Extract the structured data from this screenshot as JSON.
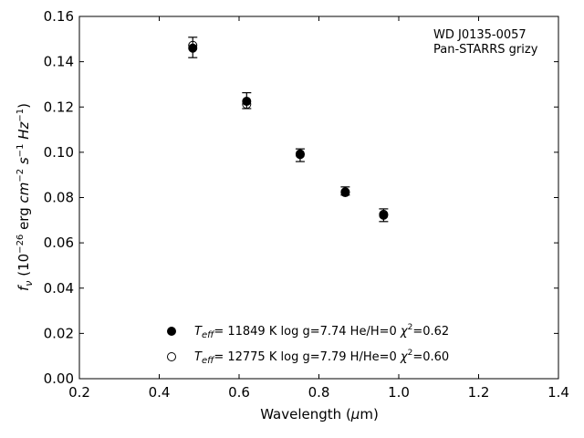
{
  "chart_data": {
    "type": "scatter",
    "annotation": [
      "WD J0135-0057",
      "Pan-STARRS grizy"
    ],
    "xlabel": {
      "main": "Wavelength (",
      "mu": "μ",
      "unit": "m)"
    },
    "ylabel": {
      "f": "f",
      "nu": "ν",
      "pre": " (10",
      "exp1": "−26",
      "mid": " erg ",
      "cm": "cm",
      "exp2": "−2",
      "s": " s",
      "exp3": "−1",
      "hz": " Hz",
      "exp4": "−1",
      "close": ")"
    },
    "xlim": [
      0.2,
      1.4
    ],
    "ylim": [
      0.0,
      0.16
    ],
    "xticks": [
      "0.2",
      "0.4",
      "0.6",
      "0.8",
      "1.0",
      "1.2",
      "1.4"
    ],
    "yticks": [
      "0.00",
      "0.02",
      "0.04",
      "0.06",
      "0.08",
      "0.10",
      "0.12",
      "0.14",
      "0.16"
    ],
    "observed": {
      "x": [
        0.484,
        0.619,
        0.753,
        0.866,
        0.962
      ],
      "y": [
        0.1463,
        0.1228,
        0.0987,
        0.0829,
        0.0722
      ],
      "yerr": [
        0.0045,
        0.0035,
        0.0028,
        0.0018,
        0.0028
      ]
    },
    "series": [
      {
        "name": {
          "T": "T",
          "sub": "eff",
          "rest": "= 11849 K  log g=7.74  He/H=0  ",
          "chi": "χ",
          "sup": "2",
          "end": "=0.62"
        },
        "marker": "filled",
        "x": [
          0.484,
          0.619,
          0.753,
          0.866,
          0.962
        ],
        "y": [
          0.146,
          0.1225,
          0.099,
          0.0825,
          0.0722
        ]
      },
      {
        "name": {
          "T": "T",
          "sub": "eff",
          "rest": "= 12775 K  log g=7.79  H/He=0  ",
          "chi": "χ",
          "sup": "2",
          "end": "=0.60"
        },
        "marker": "open",
        "x": [
          0.484,
          0.619,
          0.753,
          0.866,
          0.962
        ],
        "y": [
          0.1472,
          0.1212,
          0.0993,
          0.0822,
          0.0726
        ]
      }
    ],
    "legend_position": "bottom-center"
  }
}
